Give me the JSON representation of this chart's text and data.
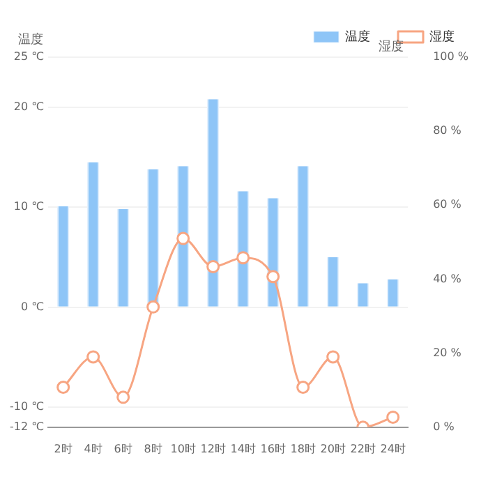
{
  "chart_data": {
    "type": "bar",
    "ylabel": "温度",
    "y2label": "湿度",
    "categories": [
      "2时",
      "4时",
      "6时",
      "8时",
      "10时",
      "12时",
      "14时",
      "16时",
      "18时",
      "20时",
      "22时",
      "24时"
    ],
    "series": [
      {
        "name": "温度",
        "color": "#8ec5f7",
        "values": [
          10.1,
          14.5,
          9.8,
          13.8,
          14.1,
          20.8,
          11.6,
          10.9,
          14.1,
          5,
          2.4,
          2.8
        ]
      },
      {
        "name": "湿度",
        "type": "line",
        "axis": "y2",
        "color": "#f7a582",
        "marker": "circle",
        "values": [
          10.8,
          19,
          8.1,
          32.5,
          51,
          43.4,
          45.8,
          40.7,
          10.8,
          19,
          0,
          2.7
        ]
      }
    ],
    "ylim": [
      -12,
      25
    ],
    "yticks": [
      {
        "value": -12,
        "label": "-12 ℃"
      },
      {
        "value": -10,
        "label": "-10 ℃"
      },
      {
        "value": 0,
        "label": "0 ℃"
      },
      {
        "value": 10,
        "label": "10 ℃"
      },
      {
        "value": 20,
        "label": "20 ℃"
      },
      {
        "value": 25,
        "label": "25 ℃"
      }
    ],
    "y2lim": [
      0,
      100
    ],
    "y2ticks": [
      {
        "value": 0,
        "label": "0 %"
      },
      {
        "value": 20,
        "label": "20 %"
      },
      {
        "value": 40,
        "label": "40 %"
      },
      {
        "value": 60,
        "label": "60 %"
      },
      {
        "value": 80,
        "label": "80 %"
      },
      {
        "value": 100,
        "label": "100 %"
      }
    ],
    "grid": "y",
    "legend": "top right"
  }
}
